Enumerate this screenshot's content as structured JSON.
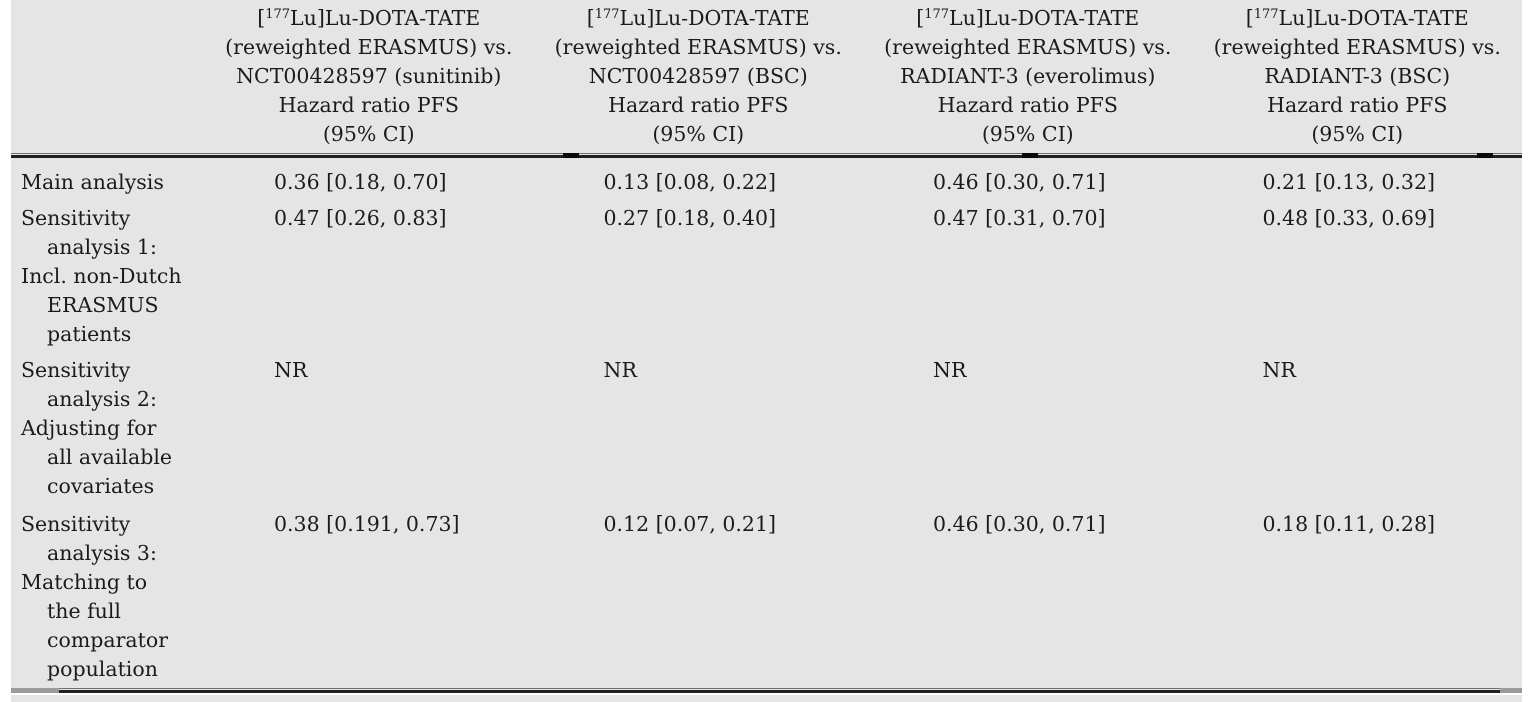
{
  "colors": {
    "page_background": "#ffffff",
    "table_background": "#e5e5e5",
    "text": "#1b1b1b",
    "rule": "#1f1f1f"
  },
  "table": {
    "columns": [
      {
        "compound_pre": "[",
        "compound_sup": "177",
        "compound_post": "Lu]Lu-DOTA-TATE",
        "vs_line": "(reweighted ERASMUS) vs.",
        "comparator": "NCT00428597 (sunitinib)",
        "measure": "Hazard ratio PFS",
        "ci": "(95% CI)"
      },
      {
        "compound_pre": "[",
        "compound_sup": "177",
        "compound_post": "Lu]Lu-DOTA-TATE",
        "vs_line": "(reweighted ERASMUS) vs.",
        "comparator": "NCT00428597 (BSC)",
        "measure": "Hazard ratio PFS",
        "ci": "(95% CI)"
      },
      {
        "compound_pre": "[",
        "compound_sup": "177",
        "compound_post": "Lu]Lu-DOTA-TATE",
        "vs_line": "(reweighted ERASMUS) vs.",
        "comparator": "RADIANT-3 (everolimus)",
        "measure": "Hazard ratio PFS",
        "ci": "(95% CI)"
      },
      {
        "compound_pre": "[",
        "compound_sup": "177",
        "compound_post": "Lu]Lu-DOTA-TATE",
        "vs_line": "(reweighted ERASMUS) vs.",
        "comparator": "RADIANT-3 (BSC)",
        "measure": "Hazard ratio PFS",
        "ci": "(95% CI)"
      }
    ],
    "rows": [
      {
        "label_lines": [
          {
            "t": "Main analysis"
          }
        ],
        "values": [
          "0.36 [0.18, 0.70]",
          "0.13 [0.08, 0.22]",
          "0.46 [0.30, 0.71]",
          "0.21 [0.13, 0.32]"
        ]
      },
      {
        "label_lines": [
          {
            "t": "Sensitivity"
          },
          {
            "t": "analysis 1:"
          },
          {
            "t": "Incl. non-Dutch"
          },
          {
            "t": "ERASMUS"
          },
          {
            "t": "patients"
          }
        ],
        "values": [
          "0.47 [0.26, 0.83]",
          "0.27 [0.18, 0.40]",
          "0.47 [0.31, 0.70]",
          "0.48 [0.33, 0.69]"
        ]
      },
      {
        "label_lines": [
          {
            "t": "Sensitivity"
          },
          {
            "t": "analysis 2:"
          },
          {
            "t": "Adjusting for"
          },
          {
            "t": "all available"
          },
          {
            "t": "covariates"
          }
        ],
        "values": [
          "NR",
          "NR",
          "NR",
          "NR"
        ]
      },
      {
        "label_lines": [
          {
            "t": "Sensitivity"
          },
          {
            "t": "analysis 3:"
          },
          {
            "t": "Matching to"
          },
          {
            "t": "the full"
          },
          {
            "t": "comparator"
          },
          {
            "t": "population"
          }
        ],
        "values": [
          "0.38 [0.191, 0.73]",
          "0.12 [0.07, 0.21]",
          "0.46 [0.30, 0.71]",
          "0.18 [0.11, 0.28]"
        ]
      }
    ]
  }
}
